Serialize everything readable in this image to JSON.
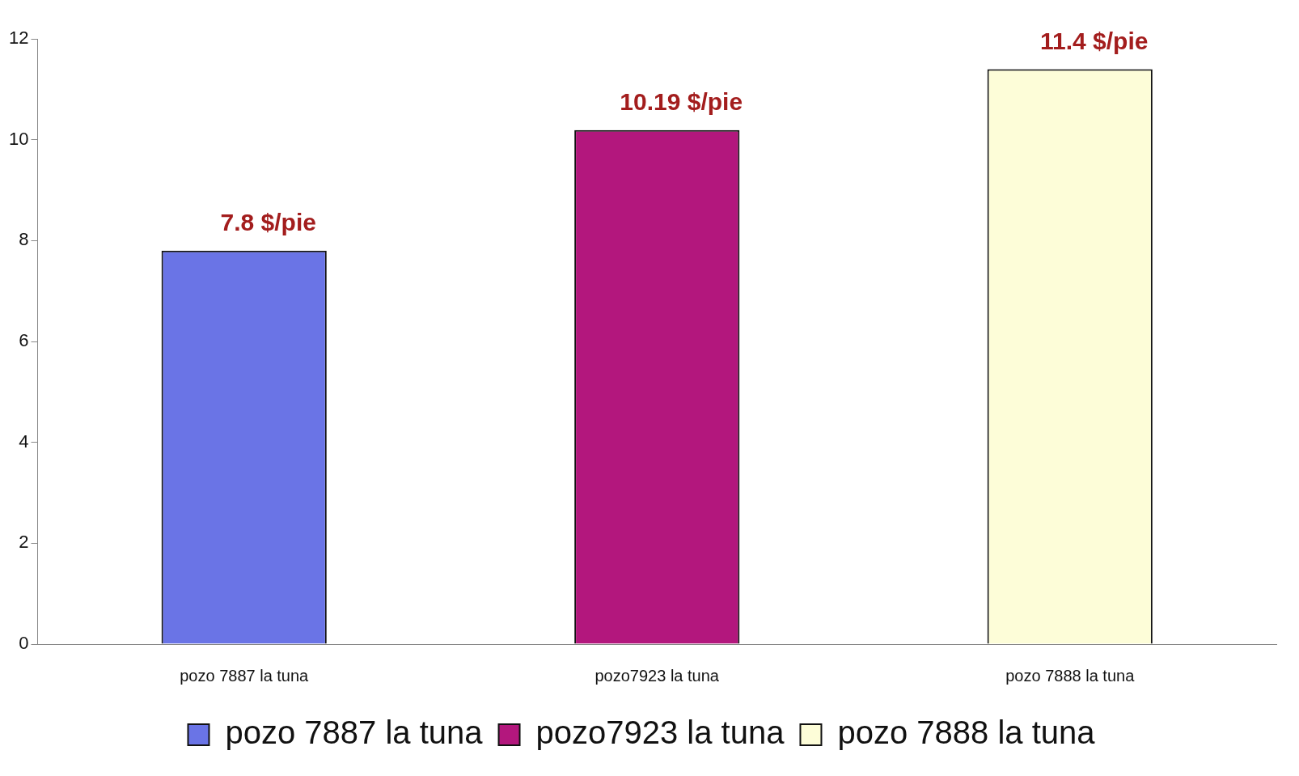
{
  "chart_data": {
    "type": "bar",
    "categories": [
      "pozo 7887 la tuna",
      "pozo7923 la tuna",
      "pozo 7888 la tuna"
    ],
    "series": [
      {
        "name": "pozo 7887 la tuna",
        "color": "#6a74e6",
        "values": [
          7.8,
          null,
          null
        ],
        "value_labels": [
          "7.8 $/pie",
          null,
          null
        ]
      },
      {
        "name": "pozo7923 la tuna",
        "color": "#b3177d",
        "values": [
          null,
          10.19,
          null
        ],
        "value_labels": [
          null,
          "10.19 $/pie",
          null
        ]
      },
      {
        "name": "pozo 7888 la tuna",
        "color": "#fdfdd8",
        "values": [
          null,
          null,
          11.4
        ],
        "value_labels": [
          null,
          null,
          "11.4 $/pie"
        ]
      }
    ],
    "ylim": [
      0,
      12
    ],
    "yticks": [
      0,
      2,
      4,
      6,
      8,
      10,
      12
    ],
    "grid": false,
    "legend": "bottom"
  }
}
